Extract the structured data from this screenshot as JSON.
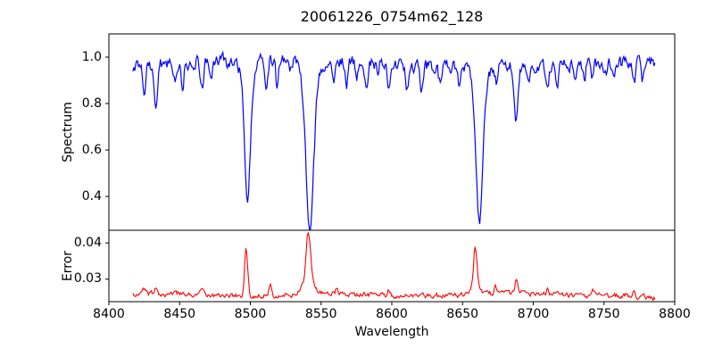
{
  "chart_data": {
    "type": "line",
    "title": "20061226_0754m62_128",
    "xlabel": "Wavelength",
    "xlim": [
      8400,
      8800
    ],
    "x_ticks": {
      "values": [
        8400,
        8450,
        8500,
        8550,
        8600,
        8650,
        8700,
        8750,
        8800
      ],
      "labels": [
        "8400",
        "8450",
        "8500",
        "8550",
        "8600",
        "8650",
        "8700",
        "8750",
        "8800"
      ]
    },
    "data_wavelength_range": [
      8417,
      8786
    ],
    "grid": false,
    "legend": false,
    "background_color": "#ffffff",
    "axis_color": "#000000",
    "panels": [
      {
        "name": "spectrum",
        "ylabel": "Spectrum",
        "color": "#0000ff",
        "ylim": [
          0.254,
          1.1
        ],
        "y_ticks": {
          "values": [
            0.4,
            0.6,
            0.8,
            1.0
          ],
          "labels": [
            "0.4",
            "0.6",
            "0.8",
            "1.0"
          ]
        },
        "continuum_level": 0.965,
        "noise_amplitude": 0.024,
        "absorption_lines": [
          {
            "wavelength": 8425,
            "min_value": 0.84,
            "sigma": 1.0
          },
          {
            "wavelength": 8433,
            "min_value": 0.78,
            "sigma": 1.2
          },
          {
            "wavelength": 8447,
            "min_value": 0.885,
            "sigma": 0.9
          },
          {
            "wavelength": 8452,
            "min_value": 0.87,
            "sigma": 1.0
          },
          {
            "wavelength": 8460,
            "min_value": 0.9,
            "sigma": 0.8
          },
          {
            "wavelength": 8466,
            "min_value": 0.84,
            "sigma": 1.2
          },
          {
            "wavelength": 8472,
            "min_value": 0.88,
            "sigma": 0.9
          },
          {
            "wavelength": 8484,
            "min_value": 0.93,
            "sigma": 0.8
          },
          {
            "wavelength": 8498,
            "min_value": 0.44,
            "sigma": 2.1
          },
          {
            "wavelength": 8498,
            "min_value": 0.91,
            "sigma": 5.5
          },
          {
            "wavelength": 8511,
            "min_value": 0.82,
            "sigma": 1.0
          },
          {
            "wavelength": 8519,
            "min_value": 0.84,
            "sigma": 1.0
          },
          {
            "wavelength": 8528,
            "min_value": 0.92,
            "sigma": 0.8
          },
          {
            "wavelength": 8542,
            "min_value": 0.3,
            "sigma": 2.7
          },
          {
            "wavelength": 8542,
            "min_value": 0.89,
            "sigma": 6.5
          },
          {
            "wavelength": 8559,
            "min_value": 0.88,
            "sigma": 0.9
          },
          {
            "wavelength": 8568,
            "min_value": 0.87,
            "sigma": 1.0
          },
          {
            "wavelength": 8575,
            "min_value": 0.9,
            "sigma": 0.8
          },
          {
            "wavelength": 8582,
            "min_value": 0.86,
            "sigma": 1.0
          },
          {
            "wavelength": 8590,
            "min_value": 0.91,
            "sigma": 0.8
          },
          {
            "wavelength": 8598,
            "min_value": 0.84,
            "sigma": 1.1
          },
          {
            "wavelength": 8611,
            "min_value": 0.86,
            "sigma": 1.1
          },
          {
            "wavelength": 8621,
            "min_value": 0.87,
            "sigma": 1.0
          },
          {
            "wavelength": 8634,
            "min_value": 0.89,
            "sigma": 0.9
          },
          {
            "wavelength": 8642,
            "min_value": 0.91,
            "sigma": 0.8
          },
          {
            "wavelength": 8648,
            "min_value": 0.89,
            "sigma": 0.9
          },
          {
            "wavelength": 8662,
            "min_value": 0.34,
            "sigma": 2.3
          },
          {
            "wavelength": 8662,
            "min_value": 0.91,
            "sigma": 5.5
          },
          {
            "wavelength": 8674,
            "min_value": 0.91,
            "sigma": 0.8
          },
          {
            "wavelength": 8688,
            "min_value": 0.74,
            "sigma": 1.3
          },
          {
            "wavelength": 8697,
            "min_value": 0.9,
            "sigma": 0.9
          },
          {
            "wavelength": 8710,
            "min_value": 0.87,
            "sigma": 1.0
          },
          {
            "wavelength": 8717,
            "min_value": 0.86,
            "sigma": 1.0
          },
          {
            "wavelength": 8730,
            "min_value": 0.9,
            "sigma": 0.8
          },
          {
            "wavelength": 8736,
            "min_value": 0.89,
            "sigma": 0.9
          },
          {
            "wavelength": 8742,
            "min_value": 0.9,
            "sigma": 0.8
          },
          {
            "wavelength": 8751,
            "min_value": 0.92,
            "sigma": 0.8
          },
          {
            "wavelength": 8757,
            "min_value": 0.89,
            "sigma": 0.9
          },
          {
            "wavelength": 8771,
            "min_value": 0.86,
            "sigma": 1.0
          },
          {
            "wavelength": 8777,
            "min_value": 0.88,
            "sigma": 0.9
          }
        ]
      },
      {
        "name": "error",
        "ylabel": "Error",
        "color": "#ff0000",
        "ylim": [
          0.0238,
          0.0435
        ],
        "y_ticks": {
          "values": [
            0.03,
            0.04
          ],
          "labels": [
            "0.03",
            "0.04"
          ]
        },
        "baseline_level": 0.0257,
        "noise_amplitude": 0.0006,
        "peaks": [
          {
            "wavelength": 8425,
            "peak_value": 0.027,
            "sigma": 1.0
          },
          {
            "wavelength": 8433,
            "peak_value": 0.0272,
            "sigma": 1.0
          },
          {
            "wavelength": 8466,
            "peak_value": 0.027,
            "sigma": 1.0
          },
          {
            "wavelength": 8497,
            "peak_value": 0.0388,
            "sigma": 1.1
          },
          {
            "wavelength": 8514,
            "peak_value": 0.0287,
            "sigma": 0.9
          },
          {
            "wavelength": 8541,
            "peak_value": 0.0385,
            "sigma": 1.5
          },
          {
            "wavelength": 8541,
            "peak_value": 0.03,
            "sigma": 3.5
          },
          {
            "wavelength": 8561,
            "peak_value": 0.0275,
            "sigma": 0.8
          },
          {
            "wavelength": 8598,
            "peak_value": 0.0272,
            "sigma": 0.9
          },
          {
            "wavelength": 8621,
            "peak_value": 0.027,
            "sigma": 0.8
          },
          {
            "wavelength": 8659,
            "peak_value": 0.036,
            "sigma": 1.2
          },
          {
            "wavelength": 8659,
            "peak_value": 0.0285,
            "sigma": 3.0
          },
          {
            "wavelength": 8673,
            "peak_value": 0.0282,
            "sigma": 0.8
          },
          {
            "wavelength": 8688,
            "peak_value": 0.0295,
            "sigma": 1.0
          },
          {
            "wavelength": 8710,
            "peak_value": 0.027,
            "sigma": 0.8
          },
          {
            "wavelength": 8742,
            "peak_value": 0.0272,
            "sigma": 0.8
          },
          {
            "wavelength": 8771,
            "peak_value": 0.0272,
            "sigma": 0.9
          }
        ]
      }
    ]
  }
}
